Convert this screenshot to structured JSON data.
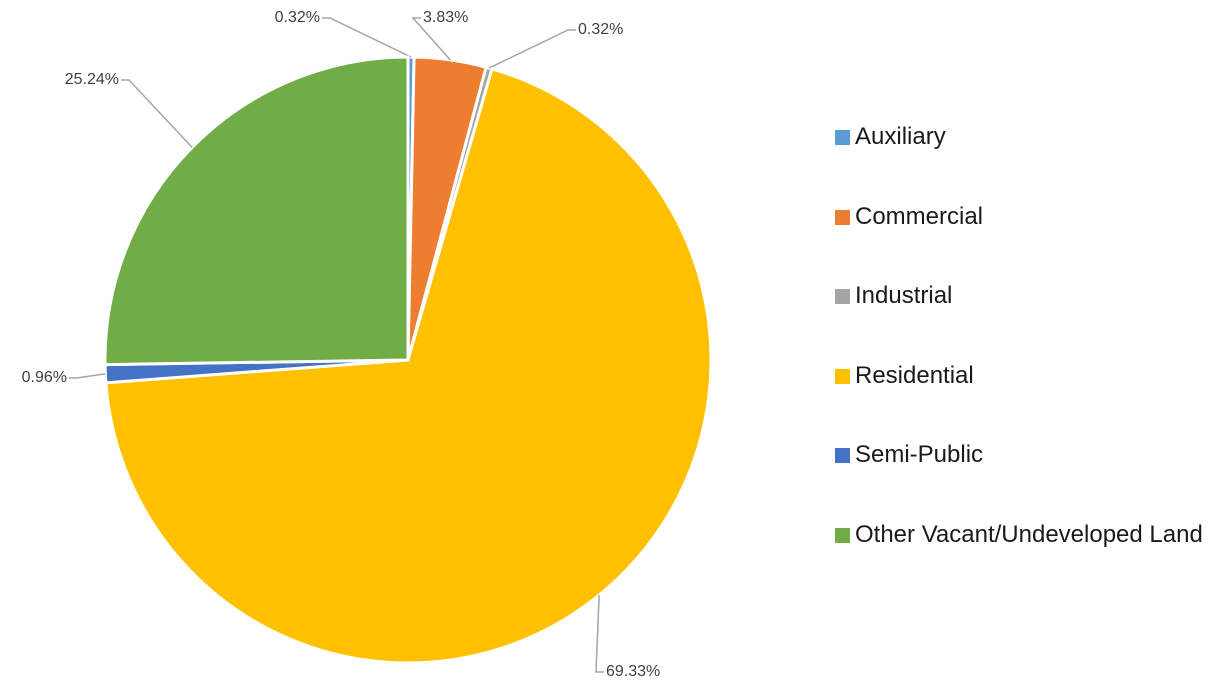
{
  "chart_data": {
    "type": "pie",
    "categories": [
      "Auxiliary",
      "Commercial",
      "Industrial",
      "Residential",
      "Semi-Public",
      "Other Vacant/Undeveloped Land"
    ],
    "values": [
      0.32,
      3.83,
      0.32,
      69.33,
      0.96,
      25.24
    ],
    "value_labels": [
      "0.32%",
      "3.83%",
      "0.32%",
      "69.33%",
      "0.96%",
      "25.24%"
    ],
    "colors": [
      "#5B9BD5",
      "#ED7D31",
      "#A5A5A5",
      "#FFC000",
      "#4472C4",
      "#70AD47"
    ],
    "legend": "right"
  }
}
